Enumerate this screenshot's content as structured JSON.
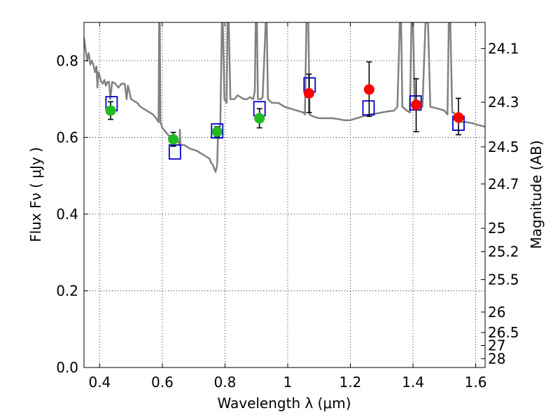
{
  "chart_data": {
    "type": "scatter",
    "xlabel": "Wavelength  λ (μm)",
    "ylabel": "Flux  Fν  ( μJy )",
    "ylabel_right": "Magnitude (AB)",
    "xlim": [
      0.35,
      1.63
    ],
    "ylim": [
      0.0,
      0.9
    ],
    "grid": true,
    "x_ticks": [
      0.4,
      0.6,
      0.8,
      1.0,
      1.2,
      1.4,
      1.6
    ],
    "x_tick_labels": [
      "0.4",
      "0.6",
      "0.8",
      "1",
      "1.2",
      "1.4",
      "1.6"
    ],
    "y_ticks": [
      0.0,
      0.2,
      0.4,
      0.6,
      0.8
    ],
    "y_tick_labels": [
      "0.0",
      "0.2",
      "0.4",
      "0.6",
      "0.8"
    ],
    "right_ticks": [
      {
        "label": "24.1",
        "flux": 0.8318
      },
      {
        "label": "24.3",
        "flux": 0.6918
      },
      {
        "label": "24.5",
        "flux": 0.5754
      },
      {
        "label": "24.7",
        "flux": 0.4786
      },
      {
        "label": "25",
        "flux": 0.3631
      },
      {
        "label": "25.2",
        "flux": 0.302
      },
      {
        "label": "25.5",
        "flux": 0.2291
      },
      {
        "label": "26",
        "flux": 0.1445
      },
      {
        "label": "26.5",
        "flux": 0.0912
      },
      {
        "label": "27",
        "flux": 0.0575
      },
      {
        "label": "28",
        "flux": 0.0229
      }
    ],
    "series": [
      {
        "name": "observed (green)",
        "color": "#22bb22",
        "points": [
          {
            "x": 0.435,
            "y": 0.67,
            "err_low": 0.023,
            "err_high": 0.023
          },
          {
            "x": 0.635,
            "y": 0.595,
            "err_low": 0.018,
            "err_high": 0.018
          },
          {
            "x": 0.775,
            "y": 0.615,
            "err_low": 0.013,
            "err_high": 0.013
          },
          {
            "x": 0.91,
            "y": 0.65,
            "err_low": 0.025,
            "err_high": 0.025
          }
        ]
      },
      {
        "name": "observed (red)",
        "color": "#ff0000",
        "points": [
          {
            "x": 1.068,
            "y": 0.715,
            "err_low": 0.05,
            "err_high": 0.05
          },
          {
            "x": 1.26,
            "y": 0.725,
            "err_low": 0.07,
            "err_high": 0.072
          },
          {
            "x": 1.41,
            "y": 0.685,
            "err_low": 0.07,
            "err_high": 0.068
          },
          {
            "x": 1.545,
            "y": 0.652,
            "err_low": 0.045,
            "err_high": 0.05
          }
        ]
      },
      {
        "name": "model photometry (blue squares)",
        "color": "#0000cc",
        "points": [
          {
            "x": 0.438,
            "y": 0.688
          },
          {
            "x": 0.64,
            "y": 0.562
          },
          {
            "x": 0.775,
            "y": 0.617
          },
          {
            "x": 0.91,
            "y": 0.675
          },
          {
            "x": 1.07,
            "y": 0.737
          },
          {
            "x": 1.258,
            "y": 0.677
          },
          {
            "x": 1.408,
            "y": 0.69
          },
          {
            "x": 1.545,
            "y": 0.637
          }
        ]
      }
    ],
    "model_spectrum": {
      "name": "model SED",
      "color": "#808080",
      "points": [
        [
          0.35,
          0.86
        ],
        [
          0.355,
          0.83
        ],
        [
          0.36,
          0.8
        ],
        [
          0.365,
          0.82
        ],
        [
          0.37,
          0.79
        ],
        [
          0.375,
          0.8
        ],
        [
          0.38,
          0.79
        ],
        [
          0.385,
          0.77
        ],
        [
          0.39,
          0.785
        ],
        [
          0.393,
          0.73
        ],
        [
          0.396,
          0.77
        ],
        [
          0.4,
          0.76
        ],
        [
          0.405,
          0.745
        ],
        [
          0.41,
          0.74
        ],
        [
          0.415,
          0.75
        ],
        [
          0.42,
          0.735
        ],
        [
          0.425,
          0.745
        ],
        [
          0.43,
          0.745
        ],
        [
          0.434,
          0.7
        ],
        [
          0.438,
          0.73
        ],
        [
          0.44,
          0.745
        ],
        [
          0.45,
          0.74
        ],
        [
          0.46,
          0.73
        ],
        [
          0.47,
          0.74
        ],
        [
          0.48,
          0.74
        ],
        [
          0.486,
          0.7
        ],
        [
          0.49,
          0.735
        ],
        [
          0.495,
          0.72
        ],
        [
          0.5,
          0.7
        ],
        [
          0.51,
          0.695
        ],
        [
          0.52,
          0.69
        ],
        [
          0.53,
          0.68
        ],
        [
          0.54,
          0.675
        ],
        [
          0.55,
          0.67
        ],
        [
          0.56,
          0.665
        ],
        [
          0.57,
          0.66
        ],
        [
          0.58,
          0.65
        ],
        [
          0.588,
          0.64
        ],
        [
          0.59,
          0.9
        ],
        [
          0.592,
          0.9
        ],
        [
          0.594,
          0.64
        ],
        [
          0.6,
          0.625
        ],
        [
          0.61,
          0.615
        ],
        [
          0.62,
          0.605
        ],
        [
          0.63,
          0.6
        ],
        [
          0.64,
          0.595
        ],
        [
          0.65,
          0.59
        ],
        [
          0.655,
          0.58
        ],
        [
          0.656,
          0.62
        ],
        [
          0.658,
          0.58
        ],
        [
          0.67,
          0.58
        ],
        [
          0.68,
          0.575
        ],
        [
          0.69,
          0.57
        ],
        [
          0.7,
          0.568
        ],
        [
          0.71,
          0.565
        ],
        [
          0.72,
          0.56
        ],
        [
          0.73,
          0.555
        ],
        [
          0.74,
          0.55
        ],
        [
          0.75,
          0.545
        ],
        [
          0.755,
          0.535
        ],
        [
          0.76,
          0.53
        ],
        [
          0.765,
          0.52
        ],
        [
          0.77,
          0.51
        ],
        [
          0.775,
          0.53
        ],
        [
          0.778,
          0.62
        ],
        [
          0.785,
          0.63
        ],
        [
          0.79,
          0.9
        ],
        [
          0.793,
          0.9
        ],
        [
          0.798,
          0.7
        ],
        [
          0.805,
          0.69
        ],
        [
          0.808,
          0.9
        ],
        [
          0.812,
          0.9
        ],
        [
          0.817,
          0.7
        ],
        [
          0.83,
          0.7
        ],
        [
          0.84,
          0.71
        ],
        [
          0.85,
          0.705
        ],
        [
          0.86,
          0.7
        ],
        [
          0.87,
          0.7
        ],
        [
          0.88,
          0.705
        ],
        [
          0.89,
          0.7
        ],
        [
          0.895,
          0.72
        ],
        [
          0.898,
          0.9
        ],
        [
          0.902,
          0.9
        ],
        [
          0.905,
          0.7
        ],
        [
          0.915,
          0.7
        ],
        [
          0.92,
          0.705
        ],
        [
          0.93,
          0.9
        ],
        [
          0.933,
          0.9
        ],
        [
          0.937,
          0.7
        ],
        [
          0.95,
          0.69
        ],
        [
          0.97,
          0.69
        ],
        [
          0.99,
          0.68
        ],
        [
          1.01,
          0.675
        ],
        [
          1.03,
          0.67
        ],
        [
          1.05,
          0.665
        ],
        [
          1.055,
          0.66
        ],
        [
          1.06,
          0.9
        ],
        [
          1.066,
          0.9
        ],
        [
          1.07,
          0.66
        ],
        [
          1.08,
          0.655
        ],
        [
          1.1,
          0.65
        ],
        [
          1.12,
          0.65
        ],
        [
          1.14,
          0.65
        ],
        [
          1.16,
          0.648
        ],
        [
          1.18,
          0.645
        ],
        [
          1.2,
          0.645
        ],
        [
          1.22,
          0.65
        ],
        [
          1.24,
          0.655
        ],
        [
          1.26,
          0.66
        ],
        [
          1.28,
          0.662
        ],
        [
          1.3,
          0.665
        ],
        [
          1.32,
          0.668
        ],
        [
          1.34,
          0.67
        ],
        [
          1.35,
          0.68
        ],
        [
          1.358,
          0.9
        ],
        [
          1.362,
          0.9
        ],
        [
          1.366,
          0.68
        ],
        [
          1.38,
          0.67
        ],
        [
          1.39,
          0.665
        ],
        [
          1.395,
          0.9
        ],
        [
          1.4,
          0.9
        ],
        [
          1.405,
          0.7
        ],
        [
          1.41,
          0.69
        ],
        [
          1.43,
          0.68
        ],
        [
          1.44,
          0.9
        ],
        [
          1.448,
          0.9
        ],
        [
          1.455,
          0.68
        ],
        [
          1.48,
          0.675
        ],
        [
          1.5,
          0.67
        ],
        [
          1.51,
          0.66
        ],
        [
          1.514,
          0.9
        ],
        [
          1.519,
          0.9
        ],
        [
          1.525,
          0.665
        ],
        [
          1.53,
          0.665
        ],
        [
          1.54,
          0.65
        ],
        [
          1.55,
          0.64
        ],
        [
          1.57,
          0.64
        ],
        [
          1.59,
          0.637
        ],
        [
          1.61,
          0.632
        ],
        [
          1.63,
          0.628
        ]
      ]
    }
  }
}
